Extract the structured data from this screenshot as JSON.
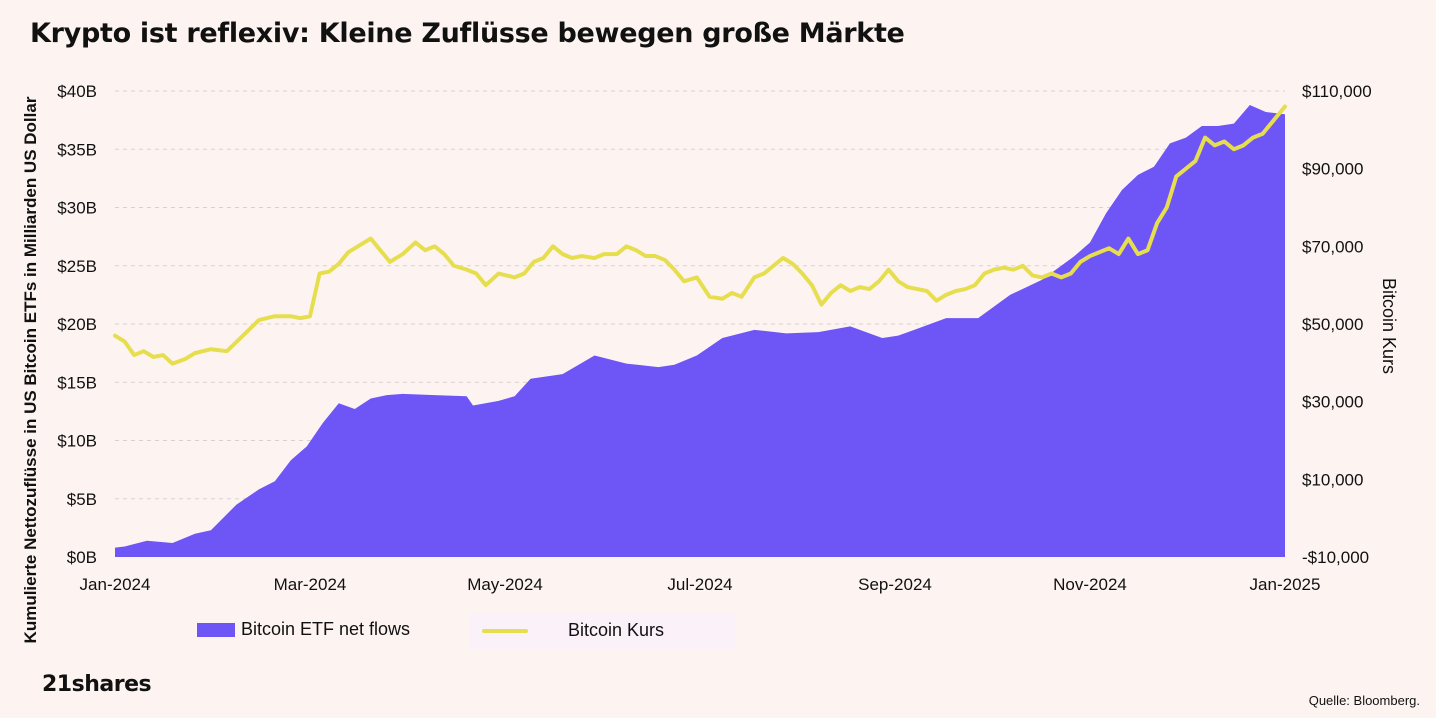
{
  "title": "Krypto ist reflexiv: Kleine Zuflüsse bewegen große Märkte",
  "brand": "21shares",
  "source": "Quelle: Bloomberg.",
  "colors": {
    "area": "#6d56f5",
    "line": "#e6de4f",
    "background": "#fdf4f1",
    "grid": "#d8d2cf"
  },
  "legend": {
    "area_label": "Bitcoin ETF net flows",
    "line_label": "Bitcoin Kurs"
  },
  "chart_data": {
    "type": "area+line",
    "title": "Krypto ist reflexiv: Kleine Zuflüsse bewegen große Märkte",
    "x_tick_labels": [
      "Jan-2024",
      "Mar-2024",
      "May-2024",
      "Jul-2024",
      "Sep-2024",
      "Nov-2024",
      "Jan-2025"
    ],
    "x_domain_days": [
      0,
      366
    ],
    "y_left": {
      "label": "Kumulierte Nettozuflüsse in US Bitcoin ETFs in Milliarden US Dollar",
      "range": [
        0,
        40
      ],
      "tick_values": [
        0,
        5,
        10,
        15,
        20,
        25,
        30,
        35,
        40
      ],
      "tick_labels": [
        "$0B",
        "$5B",
        "$10B",
        "$15B",
        "$20B",
        "$25B",
        "$30B",
        "$35B",
        "$40B"
      ]
    },
    "y_right": {
      "label": "Bitcoin Kurs",
      "range": [
        -10000,
        110000
      ],
      "tick_values": [
        -10000,
        10000,
        30000,
        50000,
        70000,
        90000,
        110000
      ],
      "tick_labels": [
        "-$10,000",
        "$10,000",
        "$30,000",
        "$50,000",
        "$70,000",
        "$90,000",
        "$110,000"
      ]
    },
    "grid": "horizontal dashed",
    "series": [
      {
        "name": "Bitcoin ETF net flows",
        "type": "area",
        "axis": "left",
        "unit": "USD billions",
        "x_days": [
          0,
          3,
          10,
          18,
          25,
          30,
          38,
          45,
          50,
          55,
          60,
          65,
          70,
          75,
          80,
          85,
          90,
          100,
          110,
          112,
          120,
          125,
          130,
          140,
          150,
          160,
          170,
          175,
          182,
          190,
          200,
          210,
          220,
          230,
          240,
          245,
          250,
          260,
          270,
          280,
          290,
          300,
          305,
          310,
          315,
          320,
          325,
          330,
          335,
          340,
          345,
          350,
          355,
          360,
          366
        ],
        "values": [
          0.8,
          0.9,
          1.4,
          1.2,
          2.0,
          2.3,
          4.5,
          5.8,
          6.5,
          8.3,
          9.5,
          11.5,
          13.2,
          12.7,
          13.6,
          13.9,
          14.0,
          13.9,
          13.8,
          13.0,
          13.4,
          13.8,
          15.3,
          15.7,
          17.3,
          16.6,
          16.3,
          16.5,
          17.3,
          18.8,
          19.5,
          19.2,
          19.3,
          19.8,
          18.8,
          19.0,
          19.5,
          20.5,
          20.5,
          22.5,
          23.8,
          25.8,
          27.0,
          29.5,
          31.5,
          32.8,
          33.5,
          35.5,
          36.0,
          37.0,
          37.0,
          37.2,
          38.8,
          38.2,
          38.0
        ]
      },
      {
        "name": "Bitcoin Kurs",
        "type": "line",
        "axis": "right",
        "unit": "USD",
        "x_days": [
          0,
          3,
          6,
          9,
          12,
          15,
          18,
          22,
          25,
          30,
          35,
          40,
          45,
          50,
          55,
          58,
          61,
          64,
          67,
          70,
          73,
          76,
          80,
          83,
          86,
          90,
          94,
          97,
          100,
          103,
          106,
          110,
          113,
          116,
          120,
          125,
          128,
          131,
          134,
          137,
          140,
          143,
          146,
          150,
          153,
          157,
          160,
          163,
          166,
          169,
          172,
          175,
          178,
          182,
          186,
          190,
          193,
          196,
          200,
          203,
          206,
          209,
          212,
          215,
          218,
          221,
          224,
          227,
          230,
          233,
          236,
          239,
          242,
          245,
          248,
          251,
          254,
          257,
          260,
          263,
          266,
          269,
          272,
          275,
          278,
          281,
          284,
          287,
          290,
          293,
          296,
          299,
          302,
          305,
          308,
          311,
          314,
          317,
          320,
          323,
          326,
          329,
          332,
          335,
          338,
          341,
          344,
          347,
          350,
          353,
          356,
          359,
          362,
          366
        ],
        "values": [
          47000,
          45500,
          42000,
          43000,
          41500,
          42000,
          39800,
          41000,
          42500,
          43500,
          43000,
          47000,
          51000,
          52000,
          52000,
          51500,
          52000,
          63000,
          63500,
          65500,
          68500,
          70000,
          72000,
          69000,
          66000,
          68000,
          71000,
          69000,
          70000,
          68000,
          65000,
          64000,
          63000,
          60000,
          63000,
          62000,
          63000,
          66000,
          67000,
          70000,
          68000,
          67000,
          67500,
          67000,
          68000,
          68000,
          70000,
          69000,
          67500,
          67500,
          66500,
          64000,
          61000,
          62000,
          57000,
          56500,
          58000,
          57000,
          62000,
          63000,
          65000,
          67000,
          65500,
          63000,
          60000,
          55000,
          58000,
          60000,
          58500,
          59500,
          59000,
          61000,
          64000,
          61000,
          59500,
          59000,
          58500,
          56000,
          57500,
          58500,
          59000,
          60000,
          63000,
          64000,
          64500,
          64000,
          65000,
          62500,
          62000,
          63000,
          62000,
          63000,
          66000,
          67500,
          68500,
          69500,
          68000,
          72000,
          68000,
          69000,
          76000,
          80000,
          88000,
          90000,
          92000,
          98000,
          96000,
          97000,
          95000,
          96000,
          98000,
          99000,
          102000,
          106000
        ]
      }
    ]
  }
}
